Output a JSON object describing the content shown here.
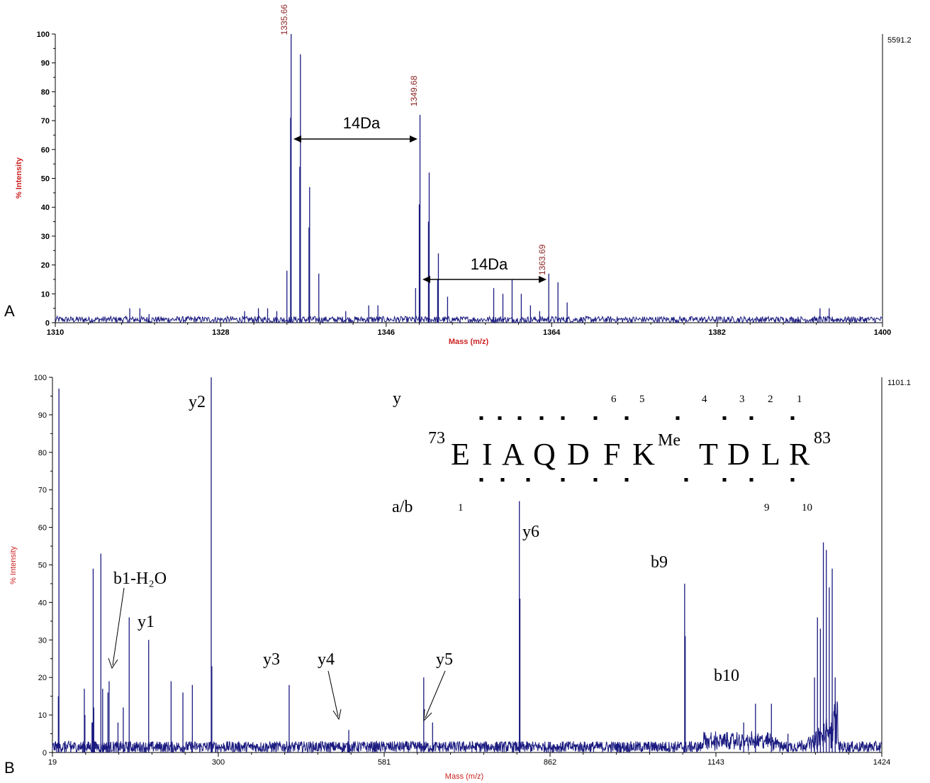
{
  "chart_data": [
    {
      "panel": "A",
      "type": "line",
      "xlabel": "Mass (m/z)",
      "ylabel": "% Intensity",
      "xlim": [
        1310,
        1400
      ],
      "ylim": [
        0,
        100
      ],
      "xticks": [
        "1310",
        "1328",
        "1346",
        "1364",
        "1382",
        "1400"
      ],
      "yticks": [
        "0",
        "10",
        "20",
        "30",
        "40",
        "50",
        "60",
        "70",
        "80",
        "90",
        "100"
      ],
      "max_intensity": "5591.2",
      "line_color": "#1a1a80",
      "peaks": [
        {
          "x": 1335.66,
          "y": 100
        },
        {
          "x": 1335.6,
          "y": 71
        },
        {
          "x": 1336.67,
          "y": 93
        },
        {
          "x": 1336.6,
          "y": 54
        },
        {
          "x": 1337.67,
          "y": 47
        },
        {
          "x": 1337.6,
          "y": 33
        },
        {
          "x": 1338.67,
          "y": 17
        },
        {
          "x": 1335.2,
          "y": 18
        },
        {
          "x": 1349.68,
          "y": 72
        },
        {
          "x": 1349.6,
          "y": 41
        },
        {
          "x": 1350.68,
          "y": 52
        },
        {
          "x": 1350.6,
          "y": 35
        },
        {
          "x": 1351.68,
          "y": 24
        },
        {
          "x": 1351.6,
          "y": 15
        },
        {
          "x": 1352.68,
          "y": 9
        },
        {
          "x": 1349.2,
          "y": 12
        },
        {
          "x": 1363.69,
          "y": 17
        },
        {
          "x": 1364.69,
          "y": 14
        },
        {
          "x": 1365.69,
          "y": 7
        },
        {
          "x": 1357.7,
          "y": 12
        },
        {
          "x": 1358.7,
          "y": 10
        },
        {
          "x": 1359.7,
          "y": 15
        },
        {
          "x": 1360.7,
          "y": 10
        },
        {
          "x": 1361.7,
          "y": 6
        },
        {
          "x": 1362.7,
          "y": 4
        },
        {
          "x": 1318.1,
          "y": 5
        },
        {
          "x": 1319.2,
          "y": 5
        },
        {
          "x": 1320.2,
          "y": 3
        },
        {
          "x": 1332.1,
          "y": 5
        },
        {
          "x": 1333.1,
          "y": 5
        },
        {
          "x": 1334.1,
          "y": 4
        },
        {
          "x": 1344.1,
          "y": 6
        },
        {
          "x": 1345.1,
          "y": 6
        },
        {
          "x": 1393.2,
          "y": 5
        },
        {
          "x": 1394.2,
          "y": 5
        },
        {
          "x": 1330.6,
          "y": 4
        },
        {
          "x": 1341.6,
          "y": 4
        }
      ],
      "peak_labels": [
        "1335.66",
        "1349.68",
        "1363.69"
      ],
      "annotations": [
        "14Da",
        "14Da"
      ]
    },
    {
      "panel": "B",
      "type": "line",
      "xlabel": "Mass (m/z)",
      "ylabel": "% Intensity",
      "xlim": [
        19,
        1424
      ],
      "ylim": [
        0,
        100
      ],
      "xticks": [
        "19",
        "300",
        "581",
        "862",
        "1143",
        "1424"
      ],
      "yticks": [
        "0",
        "10",
        "20",
        "30",
        "40",
        "50",
        "60",
        "70",
        "80",
        "90",
        "100"
      ],
      "max_intensity": "1101.1",
      "line_color": "#1a1a80",
      "peaks": [
        {
          "x": 30,
          "y": 97
        },
        {
          "x": 29,
          "y": 15
        },
        {
          "x": 40,
          "y": 3
        },
        {
          "x": 50,
          "y": 3
        },
        {
          "x": 70,
          "y": 2
        },
        {
          "x": 90,
          "y": 3
        },
        {
          "x": 105,
          "y": 2
        },
        {
          "x": 140,
          "y": 2
        },
        {
          "x": 73,
          "y": 17
        },
        {
          "x": 74,
          "y": 10
        },
        {
          "x": 86,
          "y": 8
        },
        {
          "x": 87,
          "y": 8
        },
        {
          "x": 88,
          "y": 49
        },
        {
          "x": 89,
          "y": 12
        },
        {
          "x": 101,
          "y": 53
        },
        {
          "x": 104,
          "y": 17
        },
        {
          "x": 113,
          "y": 16
        },
        {
          "x": 115,
          "y": 19
        },
        {
          "x": 130,
          "y": 8
        },
        {
          "x": 139,
          "y": 12
        },
        {
          "x": 149,
          "y": 36
        },
        {
          "x": 182,
          "y": 30
        },
        {
          "x": 220,
          "y": 19
        },
        {
          "x": 240,
          "y": 16
        },
        {
          "x": 256,
          "y": 18
        },
        {
          "x": 288,
          "y": 100
        },
        {
          "x": 289,
          "y": 23
        },
        {
          "x": 420,
          "y": 18
        },
        {
          "x": 521,
          "y": 6
        },
        {
          "x": 648,
          "y": 20
        },
        {
          "x": 663,
          "y": 8
        },
        {
          "x": 810,
          "y": 67
        },
        {
          "x": 811,
          "y": 41
        },
        {
          "x": 1090,
          "y": 45
        },
        {
          "x": 1091,
          "y": 31
        },
        {
          "x": 1210,
          "y": 13
        },
        {
          "x": 1237,
          "y": 13
        },
        {
          "x": 1190,
          "y": 8
        },
        {
          "x": 1265,
          "y": 5
        },
        {
          "x": 1310,
          "y": 20
        },
        {
          "x": 1315,
          "y": 36
        },
        {
          "x": 1320,
          "y": 33
        },
        {
          "x": 1325,
          "y": 56
        },
        {
          "x": 1330,
          "y": 54
        },
        {
          "x": 1335,
          "y": 44
        },
        {
          "x": 1340,
          "y": 49
        },
        {
          "x": 1345,
          "y": 20
        }
      ],
      "ion_labels": [
        "y2",
        "b1-H₂O",
        "y1",
        "y3",
        "y4",
        "y5",
        "y6",
        "b9",
        "b10"
      ],
      "sequence": {
        "y_label": "y",
        "ab_label": "a/b",
        "start": "73",
        "end": "83",
        "mod": "Me",
        "residues": [
          "E",
          "I",
          "A",
          "Q",
          "D",
          "F",
          "K",
          "T",
          "D",
          "L",
          "R"
        ],
        "y_numbers": [
          "6",
          "5",
          "4",
          "3",
          "2",
          "1"
        ],
        "b_numbers": [
          "1",
          "9",
          "10"
        ]
      }
    }
  ],
  "panel_labels": [
    "A",
    "B"
  ]
}
